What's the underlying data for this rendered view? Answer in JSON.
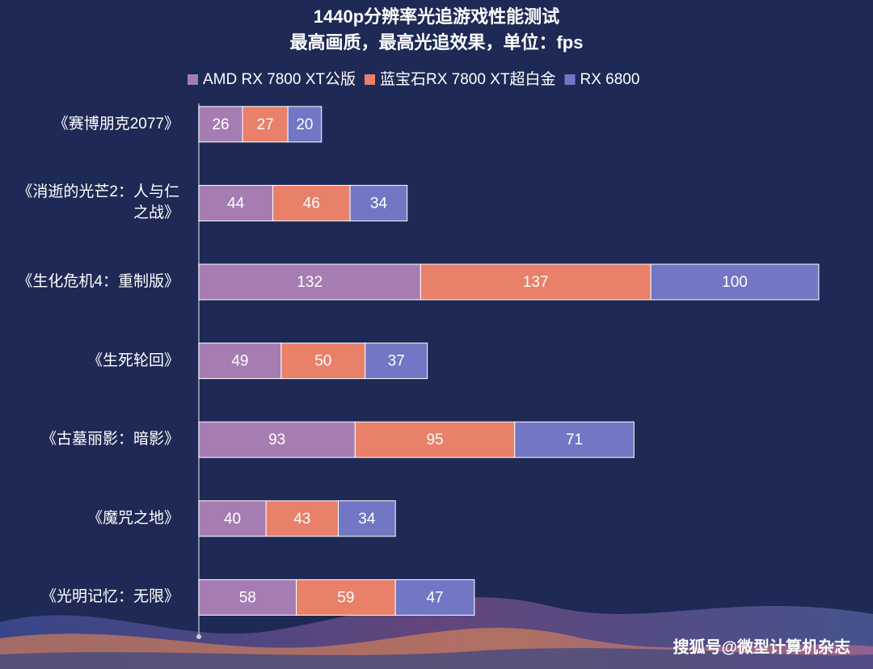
{
  "chart_data": {
    "type": "stacked_bar_horizontal",
    "title": "1440p分辨率光追游戏性能测试",
    "subtitle": "最高画质，最高光追效果，单位：fps",
    "categories": [
      "《赛博朋克2077》",
      "《消逝的光芒2：人与仁之战》",
      "《生化危机4：重制版》",
      "《生死轮回》",
      "《古墓丽影：暗影》",
      "《魔咒之地》",
      "《光明记忆：无限》"
    ],
    "series": [
      {
        "name": "AMD RX 7800 XT公版",
        "color": "#a67db3",
        "values": [
          26,
          44,
          132,
          49,
          93,
          40,
          58
        ]
      },
      {
        "name": "蓝宝石RX 7800 XT超白金",
        "color": "#e8806a",
        "values": [
          27,
          46,
          137,
          50,
          95,
          43,
          59
        ]
      },
      {
        "name": "RX 6800",
        "color": "#7177c4",
        "values": [
          20,
          34,
          100,
          37,
          71,
          34,
          47
        ]
      }
    ],
    "xlim": [
      0,
      370
    ],
    "legend": "top",
    "watermark": "搜狐号@微型计算机杂志"
  }
}
